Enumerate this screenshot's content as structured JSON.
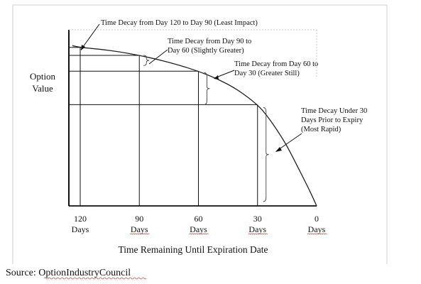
{
  "chart_data": {
    "type": "line",
    "title": "",
    "ylabel_lines": [
      "Option",
      "Value"
    ],
    "xlabel": "Time Remaining Until Expiration Date",
    "x_reversed": true,
    "xlim": [
      120,
      0
    ],
    "ylim": [
      0,
      100
    ],
    "grid": false,
    "x_ticks": [
      {
        "x": 120,
        "value": "120",
        "unit": "Days"
      },
      {
        "x": 90,
        "value": "90",
        "unit": "Days"
      },
      {
        "x": 60,
        "value": "60",
        "unit": "Days"
      },
      {
        "x": 30,
        "value": "30",
        "unit": "Days"
      },
      {
        "x": 0,
        "value": "0",
        "unit": "Days"
      }
    ],
    "series": [
      {
        "x": [
          124,
          120,
          110,
          100,
          90,
          80,
          70,
          60,
          50,
          40,
          30,
          25,
          20,
          15,
          10,
          5,
          2,
          0
        ],
        "y": [
          91,
          90,
          89,
          87.5,
          85.5,
          83,
          80,
          76.5,
          72,
          66,
          57.5,
          51,
          43,
          34,
          23,
          12,
          5,
          0
        ]
      }
    ],
    "annotations": [
      {
        "text_lines": [
          "Time Decay from Day 120 to Day 90 (Least Impact)"
        ]
      },
      {
        "text_lines": [
          "Time Decay from Day 90 to",
          "Day 60 (Slightly Greater)"
        ]
      },
      {
        "text_lines": [
          "Time Decay from Day 60 to",
          "Day 30 (Greater Still)"
        ]
      },
      {
        "text_lines": [
          "Time Decay Under 30",
          "Days Prior to Expiry",
          "(Most Rapid)"
        ]
      }
    ]
  },
  "source": {
    "label": "Source: ",
    "name": "OptionIndustryCouncil"
  }
}
